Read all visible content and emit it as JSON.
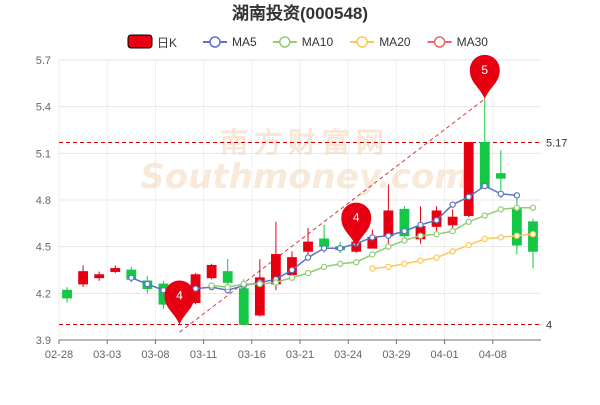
{
  "chart_data": {
    "type": "candlestick",
    "title": "湖南投资(000548)",
    "legend": [
      {
        "name": "日K",
        "color": "#e60012"
      },
      {
        "name": "MA5",
        "color": "#5b73c8"
      },
      {
        "name": "MA10",
        "color": "#91cc75"
      },
      {
        "name": "MA20",
        "color": "#fac858"
      },
      {
        "name": "MA30",
        "color": "#ee6666"
      }
    ],
    "legend_position": "top",
    "ylim": [
      3.9,
      5.7
    ],
    "yticks": [
      "3.9",
      "4.2",
      "4.5",
      "4.8",
      "5.1",
      "5.4",
      "5.7"
    ],
    "x_tick_labels": [
      "02-28",
      "03-03",
      "03-08",
      "03-11",
      "03-16",
      "03-21",
      "03-24",
      "03-29",
      "04-01",
      "04-08"
    ],
    "x_tick_index": [
      0,
      3,
      6,
      9,
      12,
      15,
      18,
      21,
      24,
      27
    ],
    "grid": true,
    "up_color": "#e60012",
    "down_color": "#14c745",
    "candles": [
      {
        "o": 4.22,
        "c": 4.17,
        "l": 4.14,
        "h": 4.24
      },
      {
        "o": 4.26,
        "c": 4.34,
        "l": 4.24,
        "h": 4.38
      },
      {
        "o": 4.3,
        "c": 4.32,
        "l": 4.28,
        "h": 4.34
      },
      {
        "o": 4.34,
        "c": 4.36,
        "l": 4.33,
        "h": 4.38
      },
      {
        "o": 4.35,
        "c": 4.29,
        "l": 4.27,
        "h": 4.37
      },
      {
        "o": 4.28,
        "c": 4.23,
        "l": 4.2,
        "h": 4.31
      },
      {
        "o": 4.26,
        "c": 4.13,
        "l": 4.1,
        "h": 4.28
      },
      {
        "o": 4.15,
        "c": 4.1,
        "l": 4.05,
        "h": 4.22
      },
      {
        "o": 4.14,
        "c": 4.32,
        "l": 4.13,
        "h": 4.33
      },
      {
        "o": 4.3,
        "c": 4.38,
        "l": 4.29,
        "h": 4.39
      },
      {
        "o": 4.34,
        "c": 4.27,
        "l": 4.25,
        "h": 4.42
      },
      {
        "o": 4.23,
        "c": 4.0,
        "l": 4.0,
        "h": 4.29
      },
      {
        "o": 4.06,
        "c": 4.3,
        "l": 4.05,
        "h": 4.42
      },
      {
        "o": 4.26,
        "c": 4.45,
        "l": 4.22,
        "h": 4.66
      },
      {
        "o": 4.32,
        "c": 4.43,
        "l": 4.31,
        "h": 4.47
      },
      {
        "o": 4.47,
        "c": 4.53,
        "l": 4.44,
        "h": 4.62
      },
      {
        "o": 4.55,
        "c": 4.5,
        "l": 4.46,
        "h": 4.64
      },
      {
        "o": 4.5,
        "c": 4.48,
        "l": 4.46,
        "h": 4.53
      },
      {
        "o": 4.47,
        "c": 4.53,
        "l": 4.46,
        "h": 4.58
      },
      {
        "o": 4.49,
        "c": 4.56,
        "l": 4.49,
        "h": 4.61
      },
      {
        "o": 4.57,
        "c": 4.73,
        "l": 4.51,
        "h": 4.9
      },
      {
        "o": 4.74,
        "c": 4.57,
        "l": 4.52,
        "h": 4.76
      },
      {
        "o": 4.55,
        "c": 4.63,
        "l": 4.52,
        "h": 4.76
      },
      {
        "o": 4.63,
        "c": 4.73,
        "l": 4.6,
        "h": 4.76
      },
      {
        "o": 4.64,
        "c": 4.69,
        "l": 4.62,
        "h": 4.74
      },
      {
        "o": 4.7,
        "c": 5.17,
        "l": 4.69,
        "h": 5.17
      },
      {
        "o": 5.17,
        "c": 4.88,
        "l": 4.87,
        "h": 5.45
      },
      {
        "o": 4.97,
        "c": 4.94,
        "l": 4.81,
        "h": 5.12
      },
      {
        "o": 4.75,
        "c": 4.51,
        "l": 4.45,
        "h": 4.84
      },
      {
        "o": 4.66,
        "c": 4.47,
        "l": 4.36,
        "h": 4.68
      }
    ],
    "series": [
      {
        "name": "MA5",
        "start": 4,
        "values": [
          4.3,
          4.26,
          4.22,
          4.21,
          4.23,
          4.24,
          4.22,
          4.25,
          4.27,
          4.29,
          4.35,
          4.43,
          4.49,
          4.49,
          4.52,
          4.56,
          4.57,
          4.6,
          4.64,
          4.67,
          4.77,
          4.82,
          4.89,
          4.84,
          4.83
        ]
      },
      {
        "name": "MA10",
        "start": 9,
        "values": [
          4.25,
          4.24,
          4.26,
          4.26,
          4.27,
          4.3,
          4.33,
          4.37,
          4.39,
          4.4,
          4.45,
          4.5,
          4.54,
          4.57,
          4.58,
          4.6,
          4.66,
          4.7,
          4.74,
          4.75,
          4.75
        ]
      },
      {
        "name": "MA20",
        "start": 19,
        "values": [
          4.36,
          4.37,
          4.39,
          4.41,
          4.43,
          4.47,
          4.51,
          4.55,
          4.56,
          4.57,
          4.58
        ]
      }
    ],
    "ref_lines": [
      {
        "value": 5.17,
        "label": "5.17"
      },
      {
        "value": 4.0,
        "label": "4"
      }
    ],
    "markers": [
      {
        "index": 7,
        "value": 4.0,
        "label": "4",
        "text": "4"
      },
      {
        "index": 18,
        "value": 4.5,
        "label": "4",
        "text": "4"
      },
      {
        "index": 26,
        "value": 5.45,
        "label": "5",
        "text": "5"
      }
    ],
    "trendline": {
      "from_index": 7,
      "from_value": 3.95,
      "to_index": 26,
      "to_value": 5.45
    }
  },
  "watermark": {
    "cn": "南方财富网",
    "en": "Southmoney.com"
  }
}
